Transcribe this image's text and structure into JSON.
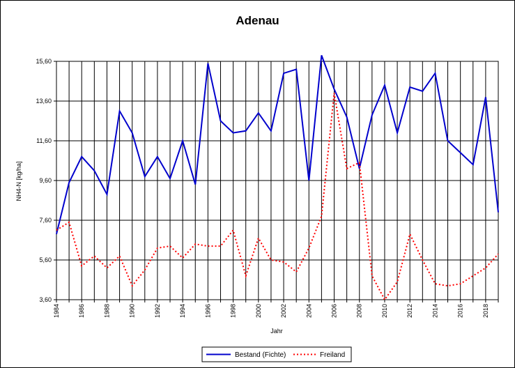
{
  "chart_data": {
    "type": "line",
    "title": "Adenau",
    "xlabel": "Jahr",
    "ylabel": "NH4-N [kg/ha]",
    "ylim": [
      3.6,
      15.6
    ],
    "yticks": [
      "3,60",
      "5,60",
      "7,60",
      "9,60",
      "11,60",
      "13,60",
      "15,60"
    ],
    "ytick_values": [
      3.6,
      5.6,
      7.6,
      9.6,
      11.6,
      13.6,
      15.6
    ],
    "xlim": [
      1984,
      2019
    ],
    "xticks": [
      "1984",
      "1986",
      "1988",
      "1990",
      "1992",
      "1994",
      "1996",
      "1998",
      "2000",
      "2002",
      "2004",
      "2006",
      "2008",
      "2010",
      "2012",
      "2014",
      "2016",
      "2018"
    ],
    "grid": "vertical lines every year, horizontal lines at y ticks",
    "legend": "bottom-center",
    "x": [
      1984,
      1985,
      1986,
      1987,
      1988,
      1989,
      1990,
      1991,
      1992,
      1993,
      1994,
      1995,
      1996,
      1997,
      1998,
      1999,
      2000,
      2001,
      2002,
      2003,
      2004,
      2005,
      2006,
      2007,
      2008,
      2009,
      2010,
      2011,
      2012,
      2013,
      2014,
      2015,
      2016,
      2017,
      2018,
      2019
    ],
    "series": [
      {
        "name": "Bestand (Fichte)",
        "color": "#0000cc",
        "style": "solid",
        "values": [
          6.9,
          9.5,
          10.8,
          10.1,
          8.9,
          13.1,
          12.0,
          9.8,
          10.8,
          9.7,
          11.6,
          9.4,
          15.5,
          12.6,
          12.0,
          12.1,
          13.0,
          12.1,
          15.0,
          15.2,
          9.6,
          15.9,
          14.2,
          12.8,
          10.2,
          12.9,
          14.4,
          12.0,
          14.3,
          14.1,
          15.0,
          11.6,
          11.0,
          10.4,
          13.8,
          8.0
        ]
      },
      {
        "name": "Freiland",
        "color": "#ff0000",
        "style": "dotted",
        "values": [
          7.1,
          7.5,
          5.3,
          5.8,
          5.2,
          5.8,
          4.3,
          5.1,
          6.2,
          6.3,
          5.7,
          6.4,
          6.3,
          6.3,
          7.1,
          4.8,
          6.7,
          5.6,
          5.5,
          5.0,
          6.2,
          7.8,
          14.0,
          10.2,
          10.5,
          4.8,
          3.6,
          4.5,
          6.9,
          5.6,
          4.4,
          4.3,
          4.4,
          4.8,
          5.2,
          5.9
        ]
      }
    ]
  }
}
